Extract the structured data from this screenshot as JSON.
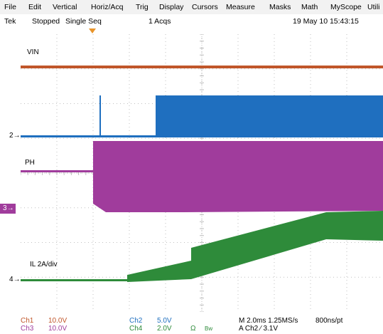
{
  "menu": {
    "file": "File",
    "edit": "Edit",
    "vertical": "Vertical",
    "horiz": "Horiz/Acq",
    "trig": "Trig",
    "display": "Display",
    "cursors": "Cursors",
    "measure": "Measure",
    "masks": "Masks",
    "math": "Math",
    "myscope": "MyScope",
    "utilities": "Utili"
  },
  "status": {
    "brand": "Tek",
    "state": "Stopped",
    "mode": "Single Seq",
    "acqs": "1 Acqs",
    "datetime": "19 May 10 15:43:15"
  },
  "waveform_labels": {
    "vin": "VIN",
    "ph": "PH",
    "il": "IL 2A/div"
  },
  "markers": {
    "ch2": "2",
    "ch3": "3",
    "ch4": "4"
  },
  "readouts": {
    "ch1_name": "Ch1",
    "ch1_scale": "10.0V",
    "ch3_name": "Ch3",
    "ch3_scale": "10.0V",
    "ch2_name": "Ch2",
    "ch2_scale": "5.0V",
    "ch4_name": "Ch4",
    "ch4_scale": "2.0V",
    "ohm": "Ω",
    "bw": "Bw",
    "timebase": "M 2.0ms 1.25MS/s",
    "resolution": "800ns/pt",
    "trigger": "A  Ch2  ⁄  3.1V"
  },
  "colors": {
    "ch1": "#c0562a",
    "ch2": "#1f6fbf",
    "ch3": "#a03c9c",
    "ch4": "#2e8b3a",
    "trigger_marker": "#e8942a",
    "grid": "#bfbfbf"
  }
}
